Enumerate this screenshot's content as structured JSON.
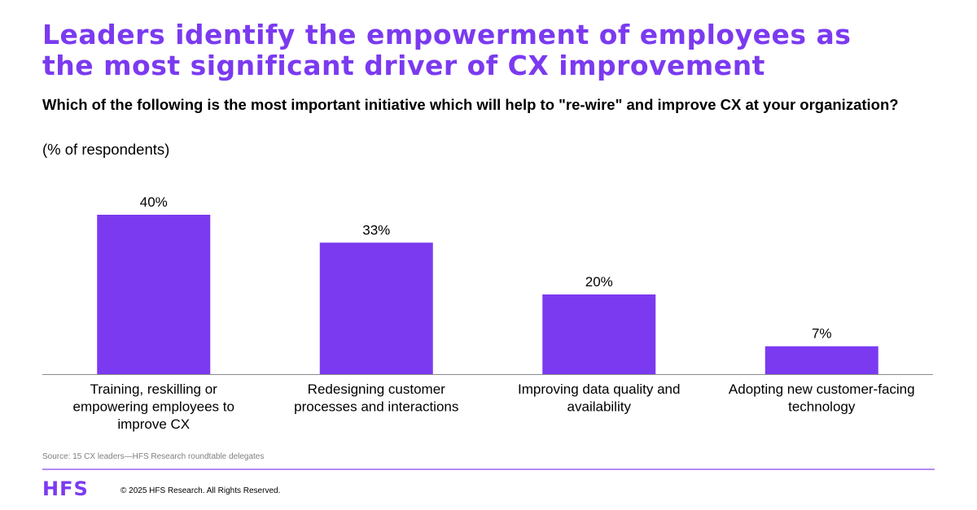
{
  "headline": {
    "line1": "Leaders identify the empowerment of employees as",
    "line2": "the most significant driver of CX improvement"
  },
  "question": "Which of the following is the most important initiative which will help to \"re-wire\" and improve CX at your organization?",
  "unit_note": "(% of respondents)",
  "chart_data": {
    "type": "bar",
    "categories": [
      [
        "Training, reskilling or",
        "empowering employees to",
        "improve CX"
      ],
      [
        "Redesigning customer",
        "processes and interactions"
      ],
      [
        "Improving data quality and",
        "availability"
      ],
      [
        "Adopting new customer-facing",
        "technology"
      ]
    ],
    "values": [
      40,
      33,
      20,
      7
    ],
    "data_labels": [
      "40%",
      "33%",
      "20%",
      "7%"
    ],
    "ylim": [
      0,
      40
    ],
    "grid": false,
    "bar_color": "#7b3af0"
  },
  "source": "Source: 15 CX leaders—HFS Research roundtable delegates",
  "footer": {
    "logo": "HFS",
    "copyright": "© 2025 HFS Research. All Rights Reserved."
  },
  "colors": {
    "accent": "#7b3af0",
    "rule": "#b48cf2"
  }
}
